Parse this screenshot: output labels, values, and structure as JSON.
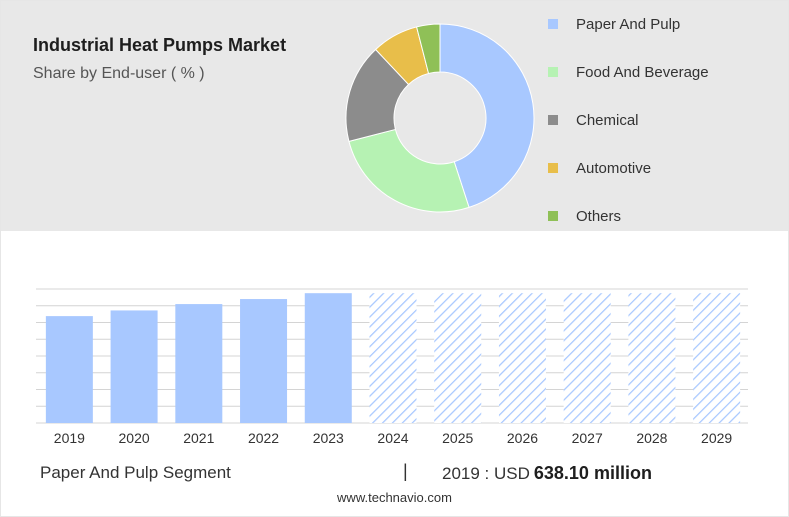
{
  "header": {
    "title": "Industrial Heat Pumps Market",
    "subtitle": "Share by End-user ( % )"
  },
  "chart_data": [
    {
      "type": "pie",
      "variant": "donut",
      "labels": [
        "Paper And Pulp",
        "Food And Beverage",
        "Chemical",
        "Automotive",
        "Others"
      ],
      "values": [
        45,
        26,
        17,
        8,
        4
      ],
      "colors": [
        "#a8c8ff",
        "#b6f2b3",
        "#8c8c8c",
        "#e8be4a",
        "#8fc057"
      ],
      "legend_placement": "right"
    },
    {
      "type": "bar",
      "categories": [
        "2019",
        "2020",
        "2021",
        "2022",
        "2023",
        "2024",
        "2025",
        "2026",
        "2027",
        "2028",
        "2029"
      ],
      "values": [
        638.1,
        672,
        710,
        740,
        775,
        775,
        775,
        775,
        775,
        775,
        775
      ],
      "forecast_from": "2024",
      "ylim": [
        0,
        800
      ],
      "grid": true,
      "color": "#a8c8ff",
      "forecast_style": "hatched"
    }
  ],
  "footer": {
    "segment_label": "Paper And Pulp Segment",
    "separator": "|",
    "year_prefix": "2019 : USD",
    "value": "638.10 million"
  },
  "source": "www.technavio.com"
}
